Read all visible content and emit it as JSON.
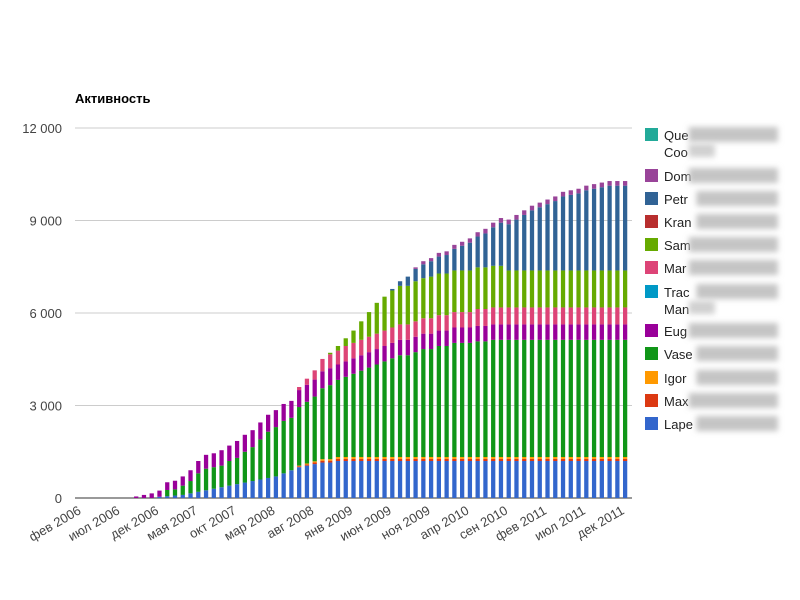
{
  "chart_data": {
    "type": "bar",
    "stacked": true,
    "title": "Активность",
    "xlabel": "",
    "ylabel": "",
    "ylim": [
      0,
      12000
    ],
    "y_ticks": [
      "0",
      "3 000",
      "6 000",
      "9 000",
      "12 000"
    ],
    "y_tick_values": [
      0,
      3000,
      6000,
      9000,
      12000
    ],
    "grid": true,
    "legend_position": "right",
    "x_tick_labels": [
      "фев 2006",
      "июл 2006",
      "дек 2006",
      "мая 2007",
      "окт 2007",
      "мар 2008",
      "авг 2008",
      "янв 2009",
      "июн 2009",
      "ноя 2009",
      "апр 2010",
      "сен 2010",
      "фев 2011",
      "июл 2011",
      "дек 2011"
    ],
    "categories": [
      "фев 2006",
      "мар 2006",
      "апр 2006",
      "мая 2006",
      "июн 2006",
      "июл 2006",
      "авг 2006",
      "сен 2006",
      "окт 2006",
      "ноя 2006",
      "дек 2006",
      "янв 2007",
      "фев 2007",
      "мар 2007",
      "апр 2007",
      "мая 2007",
      "июн 2007",
      "июл 2007",
      "авг 2007",
      "сен 2007",
      "окт 2007",
      "ноя 2007",
      "дек 2007",
      "янв 2008",
      "фев 2008",
      "мар 2008",
      "апр 2008",
      "мая 2008",
      "июн 2008",
      "июл 2008",
      "авг 2008",
      "сен 2008",
      "окт 2008",
      "ноя 2008",
      "дек 2008",
      "янв 2009",
      "фев 2009",
      "мар 2009",
      "апр 2009",
      "мая 2009",
      "июн 2009",
      "июл 2009",
      "авг 2009",
      "сен 2009",
      "окт 2009",
      "ноя 2009",
      "дек 2009",
      "янв 2010",
      "фев 2010",
      "мар 2010",
      "апр 2010",
      "мая 2010",
      "июн 2010",
      "июл 2010",
      "авг 2010",
      "сен 2010",
      "окт 2010",
      "ноя 2010",
      "дек 2010",
      "янв 2011",
      "фев 2011",
      "мар 2011",
      "апр 2011",
      "мая 2011",
      "июн 2011",
      "июл 2011",
      "авг 2011",
      "сен 2011",
      "окт 2011",
      "ноя 2011",
      "дек 2011"
    ],
    "series": [
      {
        "name": "Lape",
        "color": "#3366cc",
        "values": [
          0,
          0,
          0,
          0,
          0,
          0,
          0,
          0,
          0,
          0,
          40,
          60,
          80,
          100,
          150,
          200,
          250,
          300,
          350,
          400,
          450,
          500,
          550,
          600,
          650,
          700,
          800,
          900,
          1000,
          1050,
          1100,
          1150,
          1150,
          1200,
          1200,
          1200,
          1200,
          1200,
          1200,
          1200,
          1200,
          1200,
          1200,
          1200,
          1200,
          1200,
          1200,
          1200,
          1200,
          1200,
          1200,
          1200,
          1200,
          1200,
          1200,
          1200,
          1200,
          1200,
          1200,
          1200,
          1200,
          1200,
          1200,
          1200,
          1200,
          1200,
          1200,
          1200,
          1200,
          1200,
          1200
        ]
      },
      {
        "name": "Max",
        "color": "#dc3912",
        "values": [
          0,
          0,
          0,
          0,
          0,
          0,
          0,
          0,
          0,
          0,
          0,
          0,
          0,
          0,
          0,
          0,
          0,
          0,
          0,
          0,
          0,
          0,
          0,
          0,
          0,
          0,
          0,
          0,
          30,
          40,
          50,
          60,
          60,
          70,
          70,
          70,
          70,
          70,
          70,
          70,
          70,
          70,
          70,
          70,
          70,
          70,
          70,
          70,
          70,
          70,
          70,
          70,
          70,
          70,
          70,
          70,
          70,
          70,
          70,
          70,
          70,
          70,
          70,
          70,
          70,
          70,
          70,
          70,
          70,
          70,
          70
        ]
      },
      {
        "name": "Igor",
        "color": "#ff9900",
        "values": [
          0,
          0,
          0,
          0,
          0,
          0,
          0,
          0,
          0,
          0,
          0,
          0,
          0,
          0,
          0,
          0,
          0,
          0,
          0,
          0,
          0,
          0,
          0,
          0,
          0,
          0,
          0,
          0,
          20,
          30,
          40,
          50,
          50,
          60,
          60,
          60,
          60,
          60,
          60,
          60,
          60,
          60,
          60,
          60,
          60,
          60,
          60,
          60,
          60,
          60,
          60,
          60,
          60,
          60,
          60,
          60,
          60,
          60,
          60,
          60,
          60,
          60,
          60,
          60,
          60,
          60,
          60,
          60,
          60,
          60,
          60
        ]
      },
      {
        "name": "Vase",
        "color": "#109618",
        "values": [
          0,
          0,
          0,
          0,
          0,
          0,
          0,
          0,
          0,
          0,
          0,
          200,
          200,
          300,
          400,
          600,
          700,
          700,
          700,
          800,
          850,
          1000,
          1100,
          1300,
          1500,
          1600,
          1700,
          1700,
          1900,
          2000,
          2100,
          2300,
          2400,
          2500,
          2600,
          2700,
          2800,
          2900,
          3000,
          3100,
          3200,
          3300,
          3300,
          3400,
          3500,
          3500,
          3600,
          3600,
          3700,
          3700,
          3700,
          3750,
          3750,
          3800,
          3800,
          3800,
          3800,
          3800,
          3800,
          3800,
          3800,
          3800,
          3800,
          3800,
          3800,
          3800,
          3800,
          3800,
          3800,
          3800,
          3800
        ]
      },
      {
        "name": "Eug",
        "color": "#990099",
        "values": [
          0,
          0,
          0,
          0,
          0,
          0,
          0,
          50,
          100,
          150,
          200,
          250,
          280,
          300,
          350,
          400,
          450,
          450,
          500,
          500,
          550,
          550,
          550,
          550,
          550,
          550,
          550,
          550,
          550,
          550,
          550,
          550,
          550,
          500,
          500,
          500,
          500,
          500,
          500,
          500,
          500,
          500,
          500,
          500,
          500,
          500,
          500,
          500,
          500,
          500,
          500,
          500,
          500,
          500,
          500,
          500,
          500,
          500,
          500,
          500,
          500,
          500,
          500,
          500,
          500,
          500,
          500,
          500,
          500,
          500,
          500
        ]
      },
      {
        "name": "Trac Man",
        "color": "#0099c6",
        "values": [
          0,
          0,
          0,
          0,
          0,
          0,
          0,
          0,
          0,
          0,
          0,
          0,
          0,
          0,
          0,
          0,
          0,
          0,
          0,
          0,
          0,
          0,
          0,
          0,
          0,
          0,
          0,
          0,
          0,
          0,
          0,
          0,
          0,
          0,
          0,
          0,
          0,
          0,
          0,
          0,
          0,
          0,
          0,
          0,
          0,
          0,
          0,
          0,
          0,
          0,
          0,
          0,
          0,
          0,
          0,
          0,
          0,
          0,
          0,
          0,
          0,
          0,
          0,
          0,
          0,
          0,
          0,
          0,
          0,
          0,
          0
        ]
      },
      {
        "name": "Mar",
        "color": "#dd4477",
        "values": [
          0,
          0,
          0,
          0,
          0,
          0,
          0,
          0,
          0,
          0,
          0,
          0,
          0,
          0,
          0,
          0,
          0,
          0,
          0,
          0,
          0,
          0,
          0,
          0,
          0,
          0,
          0,
          0,
          100,
          200,
          300,
          400,
          450,
          450,
          500,
          500,
          500,
          500,
          500,
          500,
          500,
          500,
          500,
          500,
          500,
          500,
          500,
          500,
          500,
          500,
          500,
          550,
          550,
          550,
          550,
          550,
          550,
          550,
          550,
          550,
          550,
          550,
          550,
          550,
          550,
          550,
          550,
          550,
          550,
          550,
          550
        ]
      },
      {
        "name": "Sam",
        "color": "#66aa00",
        "values": [
          0,
          0,
          0,
          0,
          0,
          0,
          0,
          0,
          0,
          0,
          0,
          0,
          0,
          0,
          0,
          0,
          0,
          0,
          0,
          0,
          0,
          0,
          0,
          0,
          0,
          0,
          0,
          0,
          0,
          0,
          0,
          0,
          50,
          150,
          250,
          400,
          600,
          800,
          1000,
          1100,
          1200,
          1250,
          1250,
          1300,
          1300,
          1350,
          1350,
          1350,
          1350,
          1350,
          1350,
          1350,
          1350,
          1350,
          1350,
          1200,
          1200,
          1200,
          1200,
          1200,
          1200,
          1200,
          1200,
          1200,
          1200,
          1200,
          1200,
          1200,
          1200,
          1200,
          1200
        ]
      },
      {
        "name": "Kran",
        "color": "#b82e2e",
        "values": [
          0,
          0,
          0,
          0,
          0,
          0,
          0,
          0,
          0,
          0,
          0,
          0,
          0,
          0,
          0,
          0,
          0,
          0,
          0,
          0,
          0,
          0,
          0,
          0,
          0,
          0,
          0,
          0,
          0,
          0,
          0,
          0,
          0,
          0,
          0,
          0,
          0,
          0,
          0,
          0,
          0,
          0,
          0,
          0,
          0,
          0,
          0,
          0,
          0,
          0,
          0,
          0,
          0,
          0,
          0,
          0,
          0,
          0,
          0,
          0,
          0,
          0,
          0,
          0,
          0,
          0,
          0,
          0,
          0,
          0,
          0
        ]
      },
      {
        "name": "Petr",
        "color": "#316395",
        "values": [
          0,
          0,
          0,
          0,
          0,
          0,
          0,
          0,
          0,
          0,
          0,
          0,
          0,
          0,
          0,
          0,
          0,
          0,
          0,
          0,
          0,
          0,
          0,
          0,
          0,
          0,
          0,
          0,
          0,
          0,
          0,
          0,
          0,
          0,
          0,
          0,
          0,
          0,
          0,
          0,
          50,
          150,
          300,
          400,
          450,
          500,
          550,
          600,
          700,
          800,
          900,
          1000,
          1100,
          1250,
          1400,
          1500,
          1650,
          1800,
          1950,
          2050,
          2150,
          2250,
          2400,
          2450,
          2500,
          2600,
          2650,
          2700,
          2750,
          2750,
          2750
        ]
      },
      {
        "name": "Dom",
        "color": "#994499",
        "values": [
          0,
          0,
          0,
          0,
          0,
          0,
          0,
          0,
          0,
          0,
          0,
          0,
          0,
          0,
          0,
          0,
          0,
          0,
          0,
          0,
          0,
          0,
          0,
          0,
          0,
          0,
          0,
          0,
          0,
          0,
          0,
          0,
          0,
          0,
          0,
          0,
          0,
          0,
          0,
          0,
          0,
          0,
          0,
          50,
          100,
          100,
          120,
          120,
          130,
          130,
          140,
          140,
          150,
          150,
          150,
          150,
          150,
          150,
          150,
          150,
          150,
          150,
          150,
          150,
          150,
          150,
          150,
          150,
          150,
          150,
          150
        ]
      },
      {
        "name": "Que Coo",
        "color": "#22aa99",
        "values": [
          0,
          0,
          0,
          0,
          0,
          0,
          0,
          0,
          0,
          0,
          0,
          0,
          0,
          0,
          0,
          0,
          0,
          0,
          0,
          0,
          0,
          0,
          0,
          0,
          0,
          0,
          0,
          0,
          0,
          0,
          0,
          0,
          0,
          0,
          0,
          0,
          0,
          0,
          0,
          0,
          0,
          0,
          0,
          0,
          0,
          0,
          0,
          0,
          0,
          0,
          0,
          0,
          0,
          0,
          0,
          0,
          0,
          0,
          0,
          0,
          0,
          0,
          0,
          0,
          0,
          0,
          0,
          0,
          0,
          0,
          0
        ]
      }
    ],
    "legend": [
      {
        "label": "Que",
        "label2": "Coo",
        "color": "#22aa99"
      },
      {
        "label": "Dom",
        "color": "#994499"
      },
      {
        "label": "Petr",
        "color": "#316395"
      },
      {
        "label": "Kran",
        "color": "#b82e2e"
      },
      {
        "label": "Sam",
        "color": "#66aa00"
      },
      {
        "label": "Mar",
        "color": "#dd4477"
      },
      {
        "label": "Trac",
        "label2": "Man",
        "color": "#0099c6"
      },
      {
        "label": "Eug",
        "color": "#990099"
      },
      {
        "label": "Vase",
        "color": "#109618"
      },
      {
        "label": "Igor",
        "color": "#ff9900"
      },
      {
        "label": "Max",
        "color": "#dc3912"
      },
      {
        "label": "Lape",
        "color": "#3366cc"
      }
    ]
  }
}
